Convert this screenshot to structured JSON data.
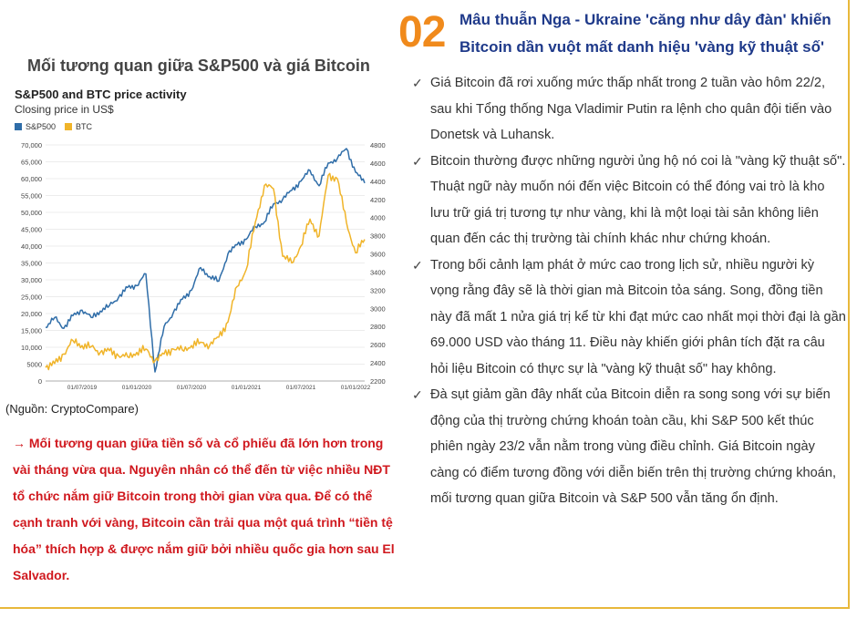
{
  "section": {
    "number": "02",
    "title": "Mâu thuẫn Nga - Ukraine 'căng như dây đàn' khiến Bitcoin dần vuột mất danh hiệu 'vàng kỹ thuật số'"
  },
  "chart_heading": "Mối tương quan giữa S&P500 và giá Bitcoin",
  "chart_data": {
    "type": "line",
    "title": "S&P500 and BTC price activity",
    "subtitle": "Closing price in US$",
    "legend": [
      "S&P500",
      "BTC"
    ],
    "x_tick_labels": [
      "01/07/2019",
      "01/01/2020",
      "01/07/2020",
      "01/01/2021",
      "01/07/2021",
      "01/01/2022"
    ],
    "left_axis": {
      "ticks": [
        0,
        5000,
        10000,
        15000,
        20000,
        25000,
        30000,
        35000,
        40000,
        45000,
        50000,
        55000,
        60000,
        65000,
        70000
      ],
      "labels": [
        "0",
        "5000",
        "10,000",
        "15,000",
        "20,000",
        "25,000",
        "30,000",
        "35,000",
        "40,000",
        "45,000",
        "50,000",
        "55,000",
        "60,000",
        "65,000",
        "70,000"
      ],
      "ylim": [
        0,
        70000
      ]
    },
    "right_axis": {
      "ticks": [
        2200,
        2400,
        2600,
        2800,
        3000,
        3200,
        3400,
        3600,
        3800,
        4000,
        4200,
        4400,
        4600,
        4800
      ],
      "labels": [
        "2200",
        "2400",
        "2600",
        "2800",
        "3000",
        "3200",
        "3400",
        "3600",
        "3800",
        "4000",
        "4200",
        "4400",
        "4600",
        "4800"
      ],
      "ylim": [
        2200,
        4800
      ]
    },
    "xlim": [
      "2019-03",
      "2022-02"
    ],
    "series": [
      {
        "name": "S&P500",
        "axis": "right",
        "color": "#2f6da8",
        "x": [
          "2019-03",
          "2019-04",
          "2019-05",
          "2019-06",
          "2019-07",
          "2019-08",
          "2019-09",
          "2019-10",
          "2019-11",
          "2019-12",
          "2020-01",
          "2020-02",
          "2020-03",
          "2020-04",
          "2020-05",
          "2020-06",
          "2020-07",
          "2020-08",
          "2020-09",
          "2020-10",
          "2020-11",
          "2020-12",
          "2021-01",
          "2021-02",
          "2021-03",
          "2021-04",
          "2021-05",
          "2021-06",
          "2021-07",
          "2021-08",
          "2021-09",
          "2021-10",
          "2021-11",
          "2021-12",
          "2022-01",
          "2022-02"
        ],
        "values": [
          2790,
          2900,
          2780,
          2920,
          2980,
          2900,
          2970,
          3030,
          3120,
          3230,
          3250,
          3380,
          2300,
          2800,
          2950,
          3100,
          3200,
          3450,
          3350,
          3300,
          3600,
          3700,
          3760,
          3900,
          3950,
          4150,
          4200,
          4300,
          4400,
          4520,
          4350,
          4600,
          4650,
          4760,
          4500,
          4380
        ]
      },
      {
        "name": "BTC",
        "axis": "left",
        "color": "#f0b429",
        "x": [
          "2019-03",
          "2019-04",
          "2019-05",
          "2019-06",
          "2019-07",
          "2019-08",
          "2019-09",
          "2019-10",
          "2019-11",
          "2019-12",
          "2020-01",
          "2020-02",
          "2020-03",
          "2020-04",
          "2020-05",
          "2020-06",
          "2020-07",
          "2020-08",
          "2020-09",
          "2020-10",
          "2020-11",
          "2020-12",
          "2021-01",
          "2021-02",
          "2021-03",
          "2021-04",
          "2021-05",
          "2021-06",
          "2021-07",
          "2021-08",
          "2021-09",
          "2021-10",
          "2021-11",
          "2021-12",
          "2022-01",
          "2022-02"
        ],
        "values": [
          4000,
          5200,
          8000,
          12000,
          10500,
          10200,
          8500,
          9000,
          7500,
          7200,
          8500,
          9500,
          6000,
          8000,
          9500,
          9200,
          10500,
          11500,
          10600,
          13000,
          17500,
          28000,
          33000,
          47000,
          58000,
          57000,
          37000,
          35000,
          40000,
          48000,
          43000,
          61000,
          60000,
          47000,
          38000,
          42000
        ]
      }
    ]
  },
  "source": "(Nguồn: CryptoCompare)",
  "conclusion": "→ Mối tương quan giữa tiền số và cổ phiếu đã lớn hơn trong vài tháng vừa qua. Nguyên nhân có thể đến từ việc nhiều NĐT tổ chức nắm giữ Bitcoin trong thời gian vừa qua. Để có thể cạnh tranh với vàng, Bitcoin cần trải qua một quá trình “tiền tệ hóa” thích hợp & được nắm giữ bởi nhiều quốc gia hơn sau El Salvador.",
  "check_icon": "✓",
  "bullets": [
    "Giá Bitcoin đã rơi xuống mức thấp nhất trong 2 tuần vào hôm 22/2, sau khi Tổng thống Nga Vladimir Putin ra lệnh cho quân đội tiến vào Donetsk và Luhansk.",
    "Bitcoin thường được những người ủng hộ nó coi là \"vàng kỹ thuật số\". Thuật ngữ này muốn nói đến việc Bitcoin có thể đóng vai trò là kho lưu trữ giá trị tương tự như vàng, khi là một loại tài sản không liên quan đến các thị trường tài chính khác như chứng khoán.",
    "Trong bối cảnh lạm phát ở mức cao trong lịch sử, nhiều người kỳ vọng rằng đây sẽ là thời gian mà Bitcoin tỏa sáng. Song, đồng tiền này đã mất 1 nửa giá trị kể từ khi đạt mức cao nhất mọi thời đại là gần 69.000 USD vào tháng 11. Điều này khiến giới phân tích đặt ra câu hỏi liệu Bitcoin có thực sự là \"vàng kỹ thuật số\" hay không.",
    "Đà sụt giảm gần đây nhất của Bitcoin diễn ra song song với sự biến động của thị trường chứng khoán toàn cầu, khi S&P 500 kết thúc phiên ngày 23/2 vẫn nằm trong vùng điều chỉnh. Giá Bitcoin ngày càng có điểm tương đồng với diễn biến trên thị trường chứng khoán, mối tương quan giữa Bitcoin và S&P 500 vẫn tăng ổn định."
  ]
}
